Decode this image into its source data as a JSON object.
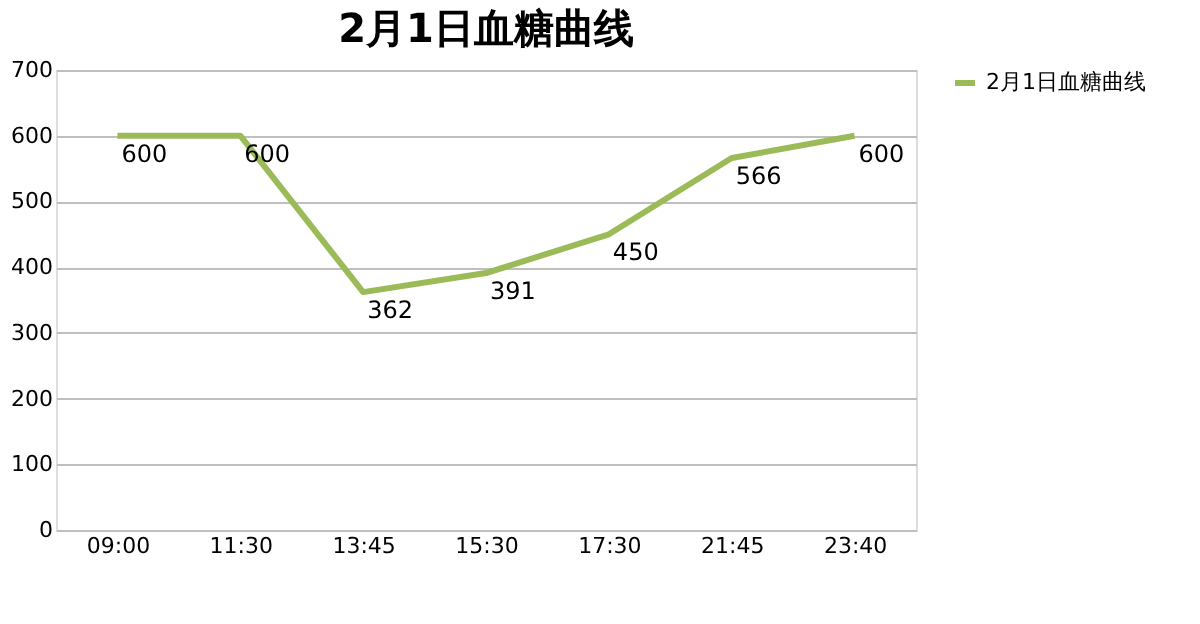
{
  "chart_data": {
    "type": "line",
    "title": "2月1日血糖曲线",
    "categories": [
      "09:00",
      "11:30",
      "13:45",
      "15:30",
      "17:30",
      "21:45",
      "23:40"
    ],
    "series": [
      {
        "name": "2月1日血糖曲线",
        "color": "#9bbb59",
        "values": [
          600,
          600,
          362,
          391,
          450,
          566,
          600
        ]
      }
    ],
    "ylim": [
      0,
      700
    ],
    "yticks": [
      0,
      100,
      200,
      300,
      400,
      500,
      600,
      700
    ],
    "grid": "y",
    "legend": "right",
    "data_labels": true,
    "marker": "none",
    "line_style": "solid"
  }
}
